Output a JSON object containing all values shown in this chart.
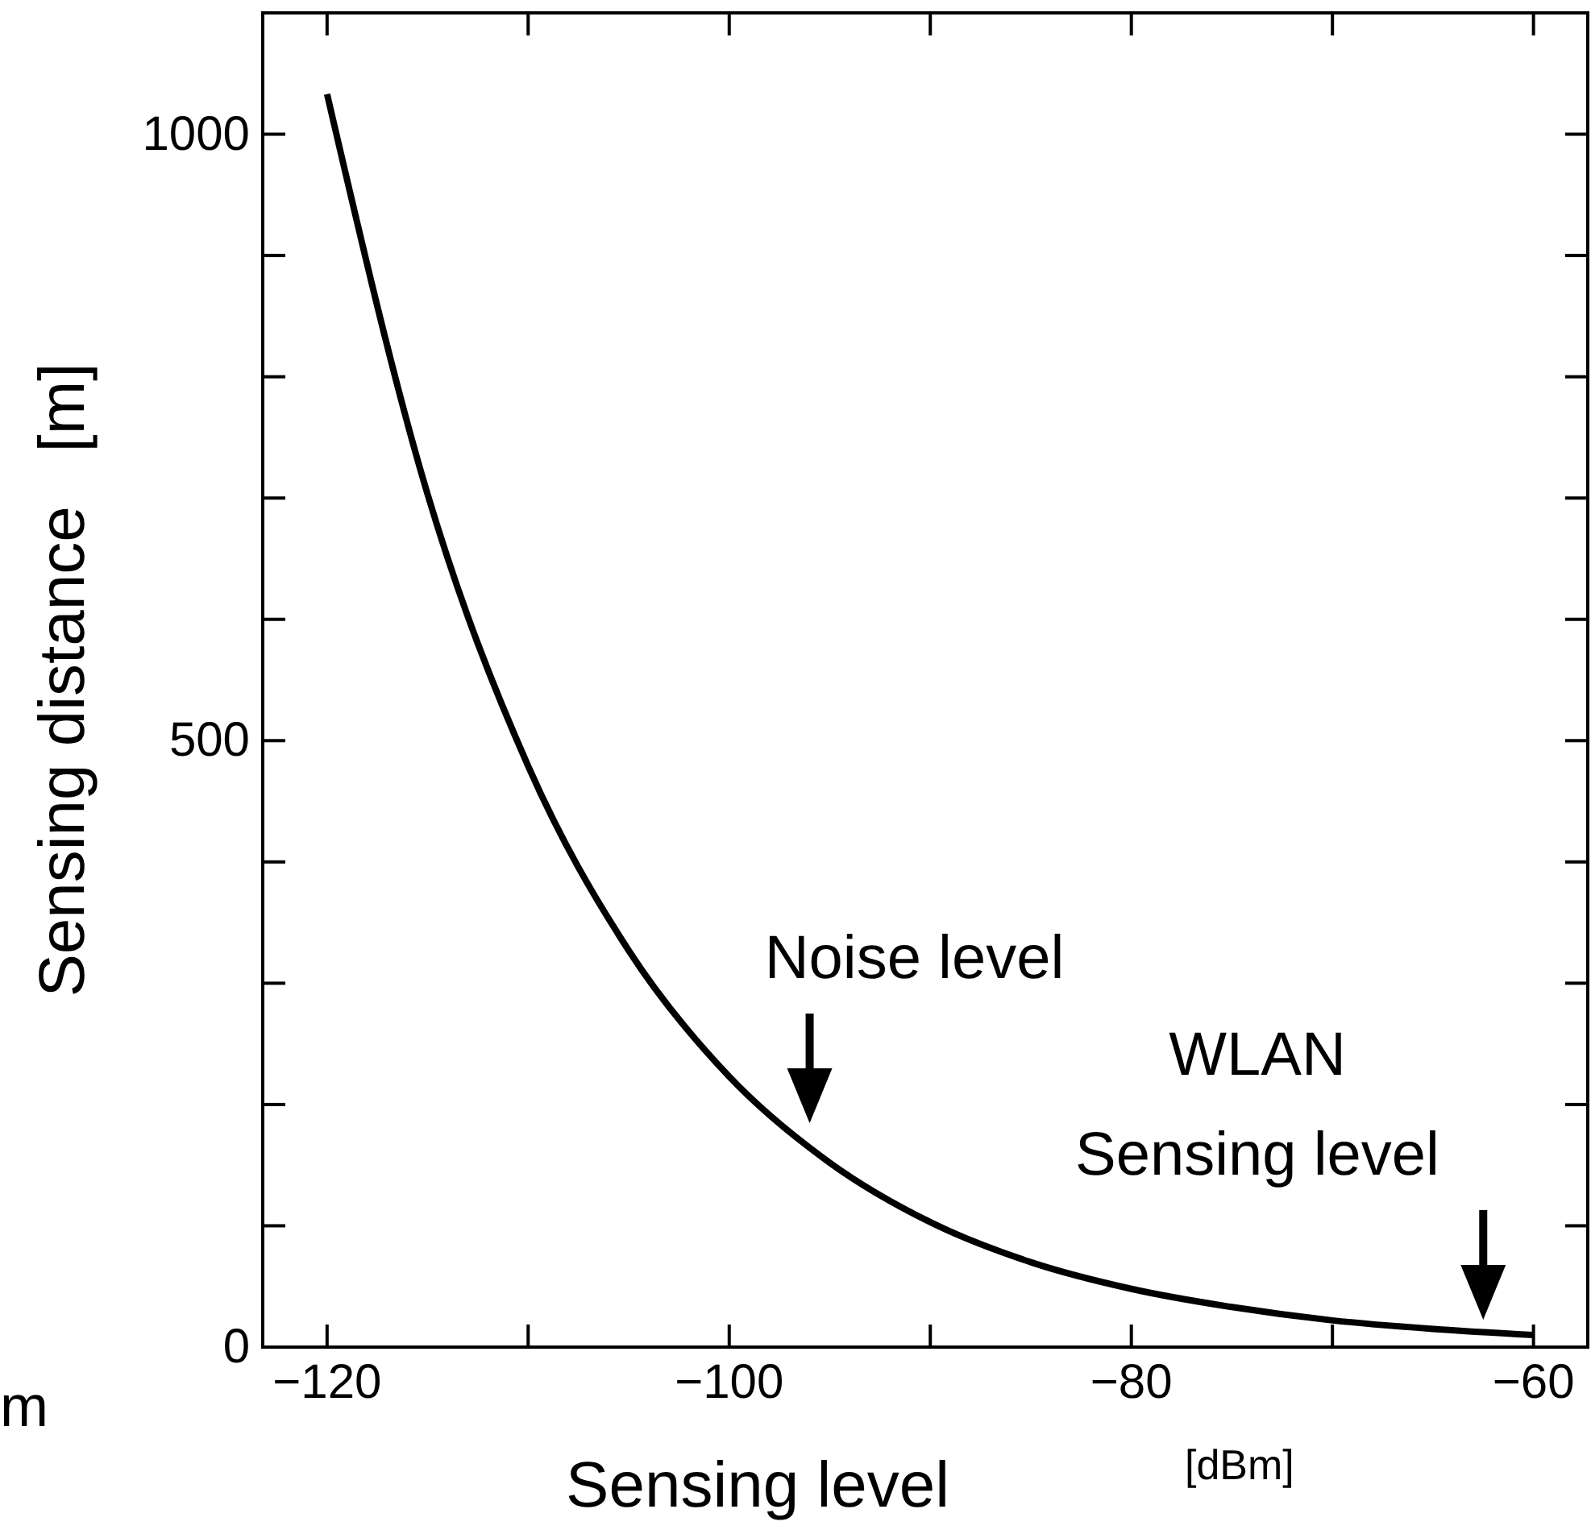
{
  "chart_data": {
    "type": "line",
    "xlabel": "Sensing level",
    "ylabel": "Sensing distance   [m]",
    "x": [
      -120,
      -115,
      -110,
      -105,
      -100,
      -95,
      -90,
      -85,
      -80,
      -75,
      -70,
      -65,
      -60
    ],
    "series": [
      {
        "color": "#000000",
        "values": [
          1033,
          703,
          479,
          327,
          223,
          152,
          103,
          70,
          48,
          33,
          22,
          15,
          10
        ]
      }
    ],
    "xlim": [
      -123.2,
      -57.3
    ],
    "ylim": [
      0,
      1100
    ],
    "xticks": [
      -120,
      {
        "value": -110,
        "label": null
      },
      -100,
      {
        "value": -90,
        "label": null
      },
      -80,
      {
        "value": -70,
        "label": null
      },
      -60
    ],
    "yticks": [
      0,
      {
        "value": 100,
        "label": null
      },
      {
        "value": 200,
        "label": null
      },
      {
        "value": 300,
        "label": null
      },
      {
        "value": 400,
        "label": null
      },
      500,
      {
        "value": 600,
        "label": null
      },
      {
        "value": 700,
        "label": null
      },
      {
        "value": 800,
        "label": null
      },
      {
        "value": 900,
        "label": null
      },
      1000
    ],
    "grid": false,
    "marker": "none",
    "line_style": "solid",
    "annotations": [
      {
        "text": "Noise level",
        "x": -96,
        "y": 174
      },
      {
        "text": "WLAN\nSensing level",
        "x": -62.5,
        "y": 12
      },
      "[dBm]",
      "m"
    ]
  }
}
